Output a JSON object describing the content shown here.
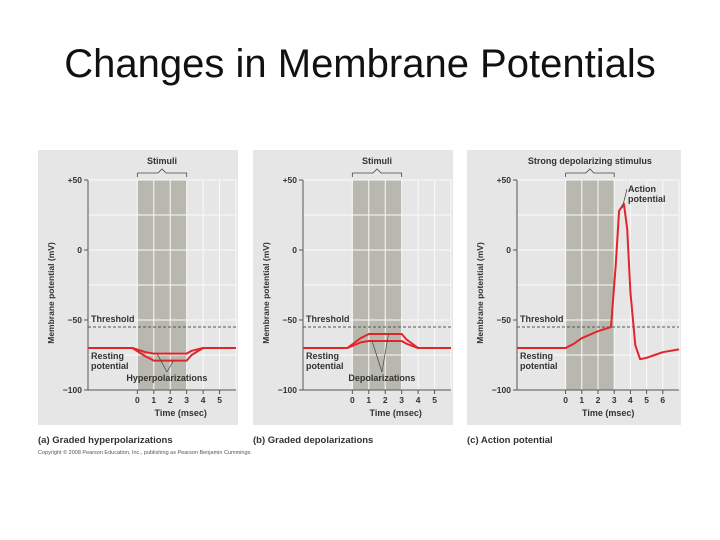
{
  "slide": {
    "title": "Changes in Membrane Potentials"
  },
  "colors": {
    "panel_bg": "#e6e6e6",
    "stimulus_bg": "#b9b8ae",
    "trace": "#e0262b",
    "threshold_line": "#555555",
    "text": "#333333"
  },
  "footer": {
    "copyright": "Copyright © 2008 Pearson Education, Inc., publishing as Pearson Benjamin Cummings."
  },
  "chart_data": [
    {
      "type": "line",
      "caption": "(a) Graded hyperpolarizations",
      "stimulus_label": "Stimuli",
      "stimulus_range": [
        0,
        3
      ],
      "xlabel": "Time (msec)",
      "ylabel": "Membrane potential (mV)",
      "xticks": [
        0,
        1,
        2,
        3,
        4,
        5
      ],
      "xlim": [
        -3,
        6
      ],
      "ylim": [
        -100,
        50
      ],
      "yticks": [
        {
          "value": 50,
          "label": "+50"
        },
        {
          "value": 0,
          "label": "0"
        },
        {
          "value": -50,
          "label": "−50"
        },
        {
          "value": -100,
          "label": "−100"
        }
      ],
      "threshold": {
        "value": -55,
        "label": "Threshold"
      },
      "resting": {
        "value": -70,
        "label_lines": [
          "Resting",
          "potential"
        ]
      },
      "annotation": "Hyperpolarizations",
      "series": [
        {
          "x": [
            -3,
            -0.3,
            0.5,
            1,
            3,
            3.3,
            4,
            6
          ],
          "y": [
            -70,
            -70,
            -73,
            -74,
            -74,
            -72,
            -70,
            -70
          ]
        },
        {
          "x": [
            -3,
            -0.3,
            0.5,
            1,
            3,
            3.3,
            4,
            6
          ],
          "y": [
            -70,
            -70,
            -76,
            -79,
            -79,
            -75,
            -70,
            -70
          ]
        }
      ]
    },
    {
      "type": "line",
      "caption": "(b) Graded depolarizations",
      "stimulus_label": "Stimuli",
      "stimulus_range": [
        0,
        3
      ],
      "xlabel": "Time (msec)",
      "ylabel": "Membrane potential (mV)",
      "xticks": [
        0,
        1,
        2,
        3,
        4,
        5
      ],
      "xlim": [
        -3,
        6
      ],
      "ylim": [
        -100,
        50
      ],
      "yticks": [
        {
          "value": 50,
          "label": "+50"
        },
        {
          "value": 0,
          "label": "0"
        },
        {
          "value": -50,
          "label": "−50"
        },
        {
          "value": -100,
          "label": "−100"
        }
      ],
      "threshold": {
        "value": -55,
        "label": "Threshold"
      },
      "resting": {
        "value": -70,
        "label_lines": [
          "Resting",
          "potential"
        ]
      },
      "annotation": "Depolarizations",
      "series": [
        {
          "x": [
            -3,
            -0.3,
            0.5,
            1,
            3,
            3.3,
            4,
            6
          ],
          "y": [
            -70,
            -70,
            -66,
            -65,
            -65,
            -67,
            -70,
            -70
          ]
        },
        {
          "x": [
            -3,
            -0.3,
            0.5,
            1,
            3,
            3.3,
            4,
            6
          ],
          "y": [
            -70,
            -70,
            -63,
            -60,
            -60,
            -64,
            -70,
            -70
          ]
        }
      ]
    },
    {
      "type": "line",
      "caption": "(c) Action potential",
      "stimulus_label": "Strong depolarizing stimulus",
      "stimulus_range": [
        0,
        3
      ],
      "xlabel": "Time (msec)",
      "ylabel": "Membrane potential (mV)",
      "xticks": [
        0,
        1,
        2,
        3,
        4,
        5,
        6
      ],
      "xlim": [
        -3,
        7
      ],
      "ylim": [
        -100,
        50
      ],
      "yticks": [
        {
          "value": 50,
          "label": "+50"
        },
        {
          "value": 0,
          "label": "0"
        },
        {
          "value": -50,
          "label": "−50"
        },
        {
          "value": -100,
          "label": "−100"
        }
      ],
      "threshold": {
        "value": -55,
        "label": "Threshold"
      },
      "resting": {
        "value": -70,
        "label_lines": [
          "Resting",
          "potential"
        ]
      },
      "annotation_lines": [
        "Action",
        "potential"
      ],
      "series": [
        {
          "x": [
            -3,
            0,
            0.5,
            1,
            2,
            2.8,
            3.1,
            3.3,
            3.6,
            3.8,
            4.0,
            4.3,
            4.6,
            5,
            5.5,
            6,
            7
          ],
          "y": [
            -70,
            -70,
            -67,
            -63,
            -58,
            -55,
            -10,
            28,
            33,
            15,
            -30,
            -68,
            -78,
            -77,
            -75,
            -73,
            -71
          ]
        }
      ]
    }
  ]
}
